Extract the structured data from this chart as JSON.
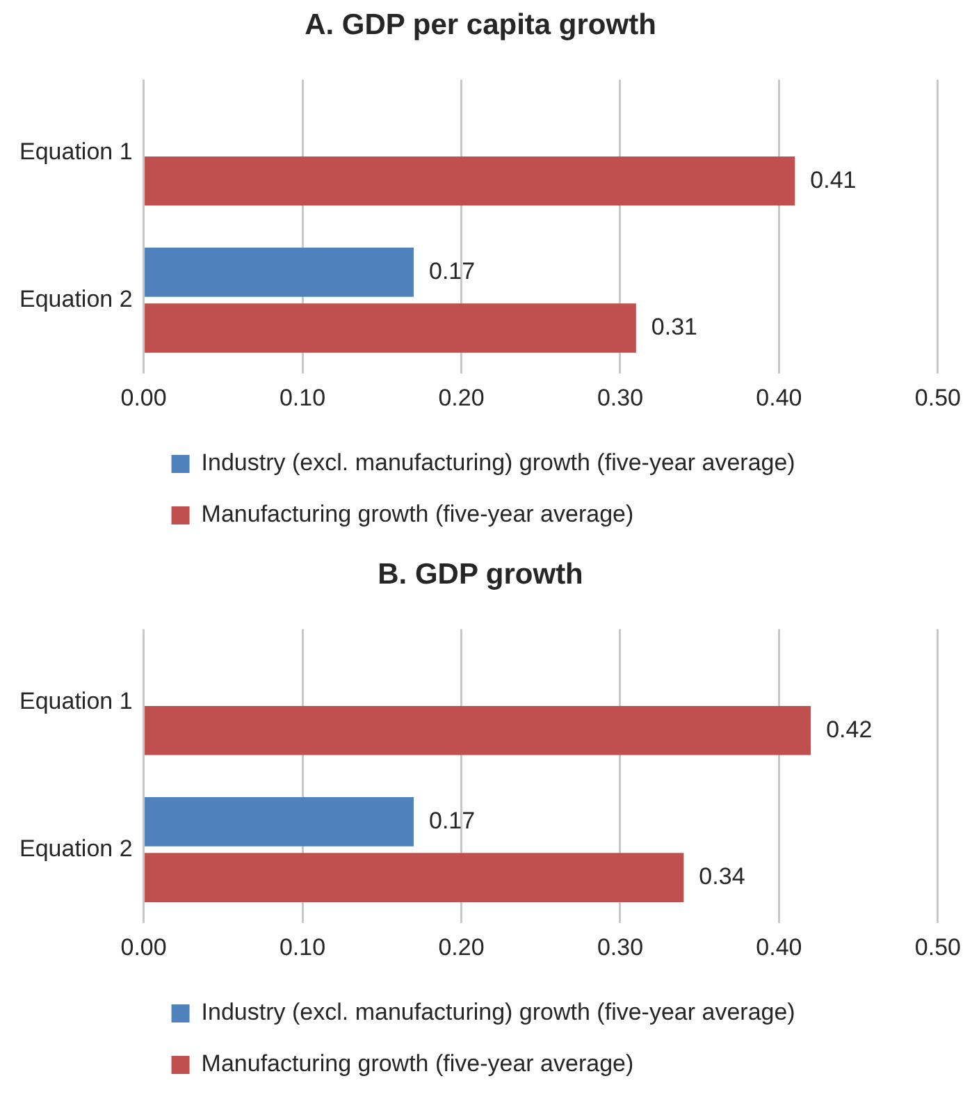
{
  "chart_data": [
    {
      "type": "bar",
      "orientation": "horizontal",
      "title": "A. GDP per capita growth",
      "categories": [
        "Equation 1",
        "Equation 2"
      ],
      "series": [
        {
          "name": "Industry (excl. manufacturing) growth (five-year average)",
          "color": "#4f81bd",
          "values": [
            null,
            0.17
          ]
        },
        {
          "name": "Manufacturing growth (five-year average)",
          "color": "#c0504d",
          "values": [
            0.41,
            0.31
          ]
        }
      ],
      "xlim": [
        0,
        0.5
      ],
      "xticks": [
        {
          "value": 0,
          "label": "0.00"
        },
        {
          "value": 0.1,
          "label": "0.10"
        },
        {
          "value": 0.2,
          "label": "0.20"
        },
        {
          "value": 0.3,
          "label": "0.30"
        },
        {
          "value": 0.4,
          "label": "0.40"
        },
        {
          "value": 0.5,
          "label": "0.50"
        }
      ],
      "data_labels": true,
      "grid": "x",
      "legend": "bottom"
    },
    {
      "type": "bar",
      "orientation": "horizontal",
      "title": "B. GDP growth",
      "categories": [
        "Equation 1",
        "Equation 2"
      ],
      "series": [
        {
          "name": "Industry (excl. manufacturing) growth (five-year average)",
          "color": "#4f81bd",
          "values": [
            null,
            0.17
          ]
        },
        {
          "name": "Manufacturing growth (five-year average)",
          "color": "#c0504d",
          "values": [
            0.42,
            0.34
          ]
        }
      ],
      "xlim": [
        0,
        0.5
      ],
      "xticks": [
        {
          "value": 0,
          "label": "0.00"
        },
        {
          "value": 0.1,
          "label": "0.10"
        },
        {
          "value": 0.2,
          "label": "0.20"
        },
        {
          "value": 0.3,
          "label": "0.30"
        },
        {
          "value": 0.4,
          "label": "0.40"
        },
        {
          "value": 0.5,
          "label": "0.50"
        }
      ],
      "data_labels": true,
      "grid": "x",
      "legend": "bottom"
    }
  ]
}
